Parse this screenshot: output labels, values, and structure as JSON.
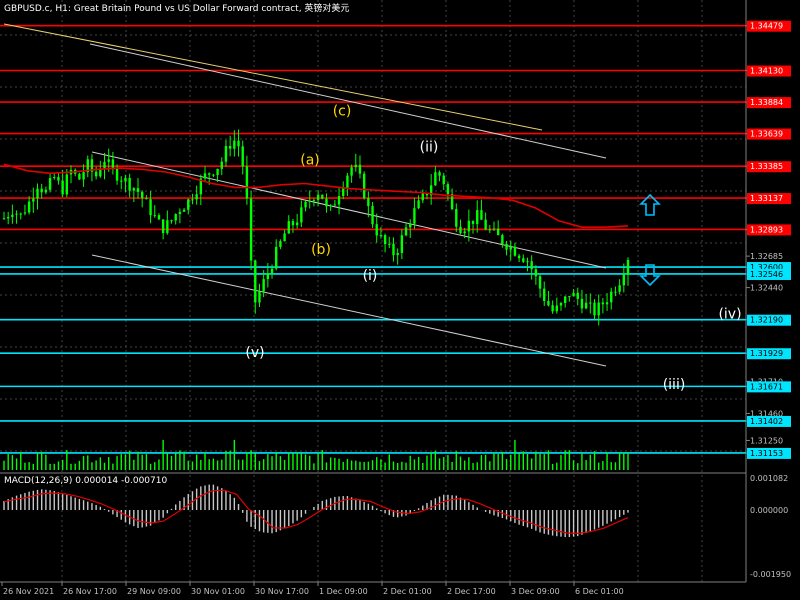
{
  "header": {
    "title": "GBPUSD.c, H1:  Great Britain Pound vs US Dollar Forward contract, 英镑对美元"
  },
  "macd": {
    "title": "MACD(12,26,9) 0.000014 -0.000710",
    "ticks": [
      "0.001082",
      "0.000000",
      "-0.001950"
    ]
  },
  "colors": {
    "background": "#000000",
    "grid": "#434343",
    "red_level": "#ff0000",
    "cyan_level": "#00e5ff",
    "bull": "#00ff00",
    "ma": "#e00000",
    "wave_yellow": "#ffd700",
    "wave_white": "#ffffff",
    "arrow": "#00bfff"
  },
  "chart_data": {
    "type": "candlestick",
    "symbol": "GBPUSD.c",
    "timeframe": "H1",
    "ylim": [
      1.3102,
      1.3464
    ],
    "price_ticks": [
      "1.34479",
      "1.34130",
      "1.33884",
      "1.33639",
      "1.33385",
      "1.33137",
      "1.32893",
      "1.32685",
      "1.32600",
      "1.32546",
      "1.32440",
      "1.32190",
      "1.31929",
      "1.31710",
      "1.31671",
      "1.31460",
      "1.31402",
      "1.31250",
      "1.31153"
    ],
    "price_tags": [
      {
        "label": "1.34479",
        "price": 1.34479,
        "color": "red"
      },
      {
        "label": "1.34130",
        "price": 1.3413,
        "color": "red"
      },
      {
        "label": "1.33884",
        "price": 1.33884,
        "color": "red"
      },
      {
        "label": "1.33639",
        "price": 1.33639,
        "color": "red"
      },
      {
        "label": "1.33385",
        "price": 1.33385,
        "color": "red"
      },
      {
        "label": "1.33137",
        "price": 1.33137,
        "color": "red"
      },
      {
        "label": "1.32893",
        "price": 1.32893,
        "color": "red"
      },
      {
        "label": "1.32600",
        "price": 1.326,
        "color": "cyan"
      },
      {
        "label": "1.32546",
        "price": 1.32546,
        "color": "cyan"
      },
      {
        "label": "1.32190",
        "price": 1.3219,
        "color": "cyan"
      },
      {
        "label": "1.31929",
        "price": 1.31929,
        "color": "cyan"
      },
      {
        "label": "1.31671",
        "price": 1.31671,
        "color": "cyan"
      },
      {
        "label": "1.31402",
        "price": 1.31402,
        "color": "cyan"
      },
      {
        "label": "1.31153",
        "price": 1.31153,
        "color": "cyan"
      }
    ],
    "x_labels": [
      "26 Nov 2021",
      "26 Nov 17:00",
      "29 Nov 09:00",
      "30 Nov 01:00",
      "30 Nov 17:00",
      "1 Dec 09:00",
      "2 Dec 01:00",
      "2 Dec 17:00",
      "3 Dec 09:00",
      "6 Dec 01:00"
    ],
    "close_path": [
      1.3298,
      1.3305,
      1.33,
      1.331,
      1.3325,
      1.3318,
      1.333,
      1.332,
      1.3335,
      1.3328,
      1.334,
      1.333,
      1.3345,
      1.3335,
      1.333,
      1.3325,
      1.332,
      1.331,
      1.33,
      1.329,
      1.3295,
      1.3305,
      1.331,
      1.332,
      1.333,
      1.3335,
      1.334,
      1.3355,
      1.336,
      1.333,
      1.323,
      1.3245,
      1.326,
      1.3275,
      1.329,
      1.3295,
      1.3305,
      1.3315,
      1.332,
      1.33,
      1.3315,
      1.333,
      1.334,
      1.3325,
      1.33,
      1.3285,
      1.3275,
      1.327,
      1.3285,
      1.33,
      1.331,
      1.332,
      1.3335,
      1.3325,
      1.33,
      1.329,
      1.3295,
      1.33,
      1.329,
      1.3285,
      1.328,
      1.3275,
      1.327,
      1.3265,
      1.325,
      1.3235,
      1.3225,
      1.323,
      1.324,
      1.3235,
      1.323,
      1.3225,
      1.3232,
      1.324,
      1.325,
      1.3268
    ],
    "ma_path": [
      1.334,
      1.3335,
      1.3333,
      1.3334,
      1.3336,
      1.3337,
      1.3336,
      1.3334,
      1.333,
      1.3325,
      1.3322,
      1.3322,
      1.3324,
      1.3325,
      1.3323,
      1.3321,
      1.332,
      1.3319,
      1.3318,
      1.3316,
      1.3315,
      1.3314,
      1.3312,
      1.3306,
      1.3296,
      1.3291,
      1.3291,
      1.3292
    ],
    "macd_hist_levels": [
      0.35,
      0.55,
      0.7,
      0.8,
      0.75,
      0.6,
      0.45,
      0.3,
      0.1,
      -0.2,
      -0.5,
      -0.7,
      -0.6,
      -0.3,
      0.2,
      0.6,
      0.9,
      1.0,
      0.8,
      0.4,
      -0.6,
      -0.85,
      -0.9,
      -0.7,
      -0.4,
      0.0,
      0.35,
      0.5,
      0.55,
      0.4,
      0.2,
      -0.1,
      -0.3,
      -0.2,
      0.1,
      0.4,
      0.6,
      0.55,
      0.3,
      0.0,
      -0.2,
      -0.35,
      -0.55,
      -0.7,
      -0.9,
      -1.0,
      -1.05,
      -1.0,
      -0.8,
      -0.6,
      -0.35,
      -0.1
    ],
    "wave_labels": [
      {
        "text": "(a)",
        "price": 1.334,
        "color": "yellow"
      },
      {
        "text": "(b)",
        "price": 1.327,
        "color": "yellow"
      },
      {
        "text": "(c)",
        "price": 1.3378,
        "color": "yellow"
      },
      {
        "text": "(ii)",
        "price": 1.335,
        "color": "white"
      },
      {
        "text": "(i)",
        "price": 1.325,
        "color": "white"
      },
      {
        "text": "(v)",
        "price": 1.319,
        "color": "white"
      },
      {
        "text": "(iv)",
        "price": 1.322,
        "color": "white"
      },
      {
        "text": "(iii)",
        "price": 1.3165,
        "color": "white"
      }
    ]
  }
}
